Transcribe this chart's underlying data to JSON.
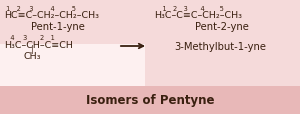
{
  "bg_light": "#f5dada",
  "bg_dark": "#e8b8b8",
  "bg_white_left": "#fdf0f0",
  "text_color": "#3a2010",
  "bottom_label": "Isomers of Pentyne",
  "label_left": "Pent-1-yne",
  "label_right": "Pent-2-yne",
  "label_iso": "3-Methylbut-1-yne",
  "formula1_left": "HC≡C–CH₂–CH₂–CH₃",
  "num1_left": " 1   2    3        4        5",
  "formula1_right": "H₃C–C≡C–CH₂–CH₃",
  "num1_right": "    1   2   3      4       5",
  "formula3": "H₃C–CH–C≡CH",
  "num3": "   4    3      2   1",
  "branch_bar": "|",
  "branch": "CH₃",
  "arrow": "⟶"
}
